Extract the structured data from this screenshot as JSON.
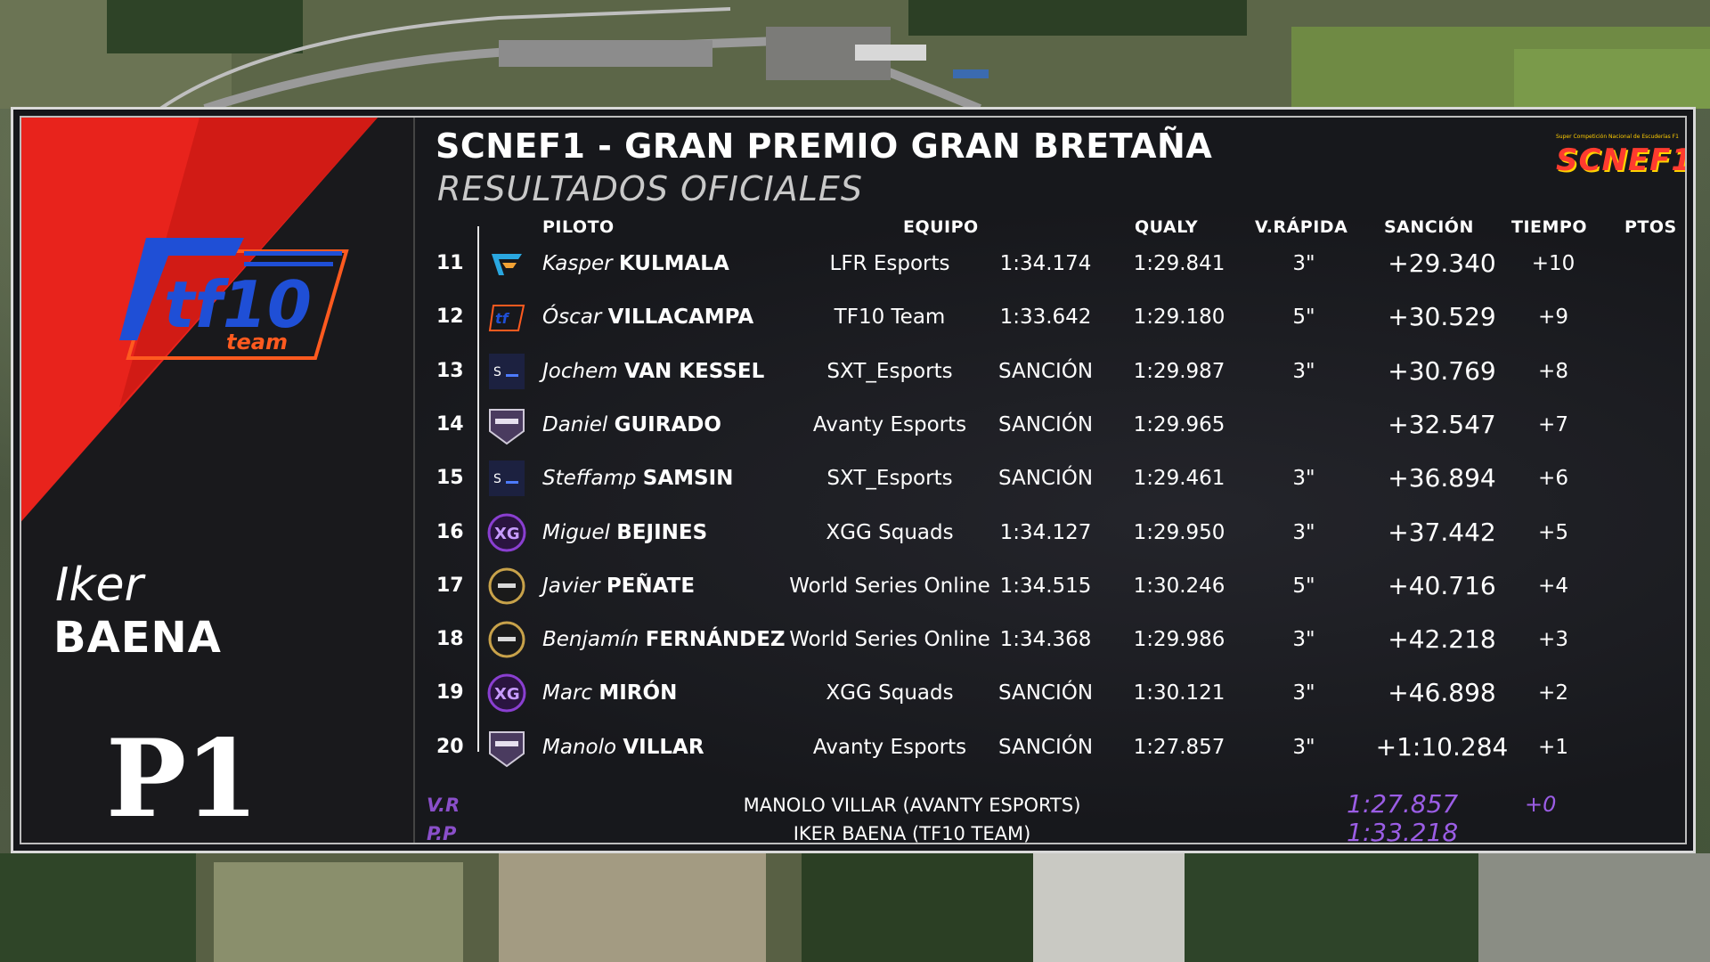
{
  "header": {
    "title": "SCNEF1 - GRAN PREMIO GRAN BRETAÑA",
    "subtitle": "RESULTADOS OFICIALES",
    "brand_small": "Super Competición Nacional de Escuderías F1",
    "brand_logo": "SCNEF1"
  },
  "featured": {
    "first_name": "Iker",
    "last_name": "BAENA",
    "position": "P1",
    "team_logo_text": "tf10",
    "team_logo_sub": "team"
  },
  "columns": {
    "driver": "PILOTO",
    "team": "EQUIPO",
    "qualy": "QUALY",
    "fast": "V.RÁPIDA",
    "penalty": "SANCIÓN",
    "time": "TIEMPO",
    "points": "PTOS"
  },
  "rows": [
    {
      "pos": "11",
      "icon": "lfr-logo",
      "first": "Kasper",
      "last": "KULMALA",
      "team": "LFR Esports",
      "qualy": "1:34.174",
      "fast": "1:29.841",
      "penalty": "3\"",
      "time": "+29.340",
      "pts": "+10"
    },
    {
      "pos": "12",
      "icon": "tf10-logo",
      "first": "Óscar",
      "last": "VILLACAMPA",
      "team": "TF10 Team",
      "qualy": "1:33.642",
      "fast": "1:29.180",
      "penalty": "5\"",
      "time": "+30.529",
      "pts": "+9"
    },
    {
      "pos": "13",
      "icon": "sxt-logo",
      "first": "Jochem",
      "last": "VAN KESSEL",
      "team": "SXT_Esports",
      "qualy": "SANCIÓN",
      "fast": "1:29.987",
      "penalty": "3\"",
      "time": "+30.769",
      "pts": "+8"
    },
    {
      "pos": "14",
      "icon": "avanty-logo",
      "first": "Daniel",
      "last": "GUIRADO",
      "team": "Avanty Esports",
      "qualy": "SANCIÓN",
      "fast": "1:29.965",
      "penalty": "",
      "time": "+32.547",
      "pts": "+7"
    },
    {
      "pos": "15",
      "icon": "sxt-logo",
      "first": "Steffamp",
      "last": "SAMSIN",
      "team": "SXT_Esports",
      "qualy": "SANCIÓN",
      "fast": "1:29.461",
      "penalty": "3\"",
      "time": "+36.894",
      "pts": "+6"
    },
    {
      "pos": "16",
      "icon": "xgg-logo",
      "first": "Miguel",
      "last": "BEJINES",
      "team": "XGG Squads",
      "qualy": "1:34.127",
      "fast": "1:29.950",
      "penalty": "3\"",
      "time": "+37.442",
      "pts": "+5"
    },
    {
      "pos": "17",
      "icon": "wso-logo",
      "first": "Javier",
      "last": "PEÑATE",
      "team": "World Series Online",
      "qualy": "1:34.515",
      "fast": "1:30.246",
      "penalty": "5\"",
      "time": "+40.716",
      "pts": "+4"
    },
    {
      "pos": "18",
      "icon": "wso-logo",
      "first": "Benjamín",
      "last": "FERNÁNDEZ",
      "team": "World Series Online",
      "qualy": "1:34.368",
      "fast": "1:29.986",
      "penalty": "3\"",
      "time": "+42.218",
      "pts": "+3"
    },
    {
      "pos": "19",
      "icon": "xgg-logo",
      "first": "Marc",
      "last": "MIRÓN",
      "team": "XGG Squads",
      "qualy": "SANCIÓN",
      "fast": "1:30.121",
      "penalty": "3\"",
      "time": "+46.898",
      "pts": "+2"
    },
    {
      "pos": "20",
      "icon": "avanty-logo",
      "first": "Manolo",
      "last": "VILLAR",
      "team": "Avanty Esports",
      "qualy": "SANCIÓN",
      "fast": "1:27.857",
      "penalty": "3\"",
      "time": "+1:10.284",
      "pts": "+1"
    }
  ],
  "footer": {
    "vr_label": "V.R",
    "pp_label": "P.P",
    "vr_driver": "MANOLO VILLAR (AVANTY ESPORTS)",
    "pp_driver": "IKER BAENA (TF10 TEAM)",
    "vr_time": "1:27.857",
    "pp_time": "1:33.218",
    "vr_pts": "+0"
  },
  "colors": {
    "accent_red": "#e8231c",
    "accent_purple": "#9b5de5",
    "panel_bg": "#17181c"
  }
}
